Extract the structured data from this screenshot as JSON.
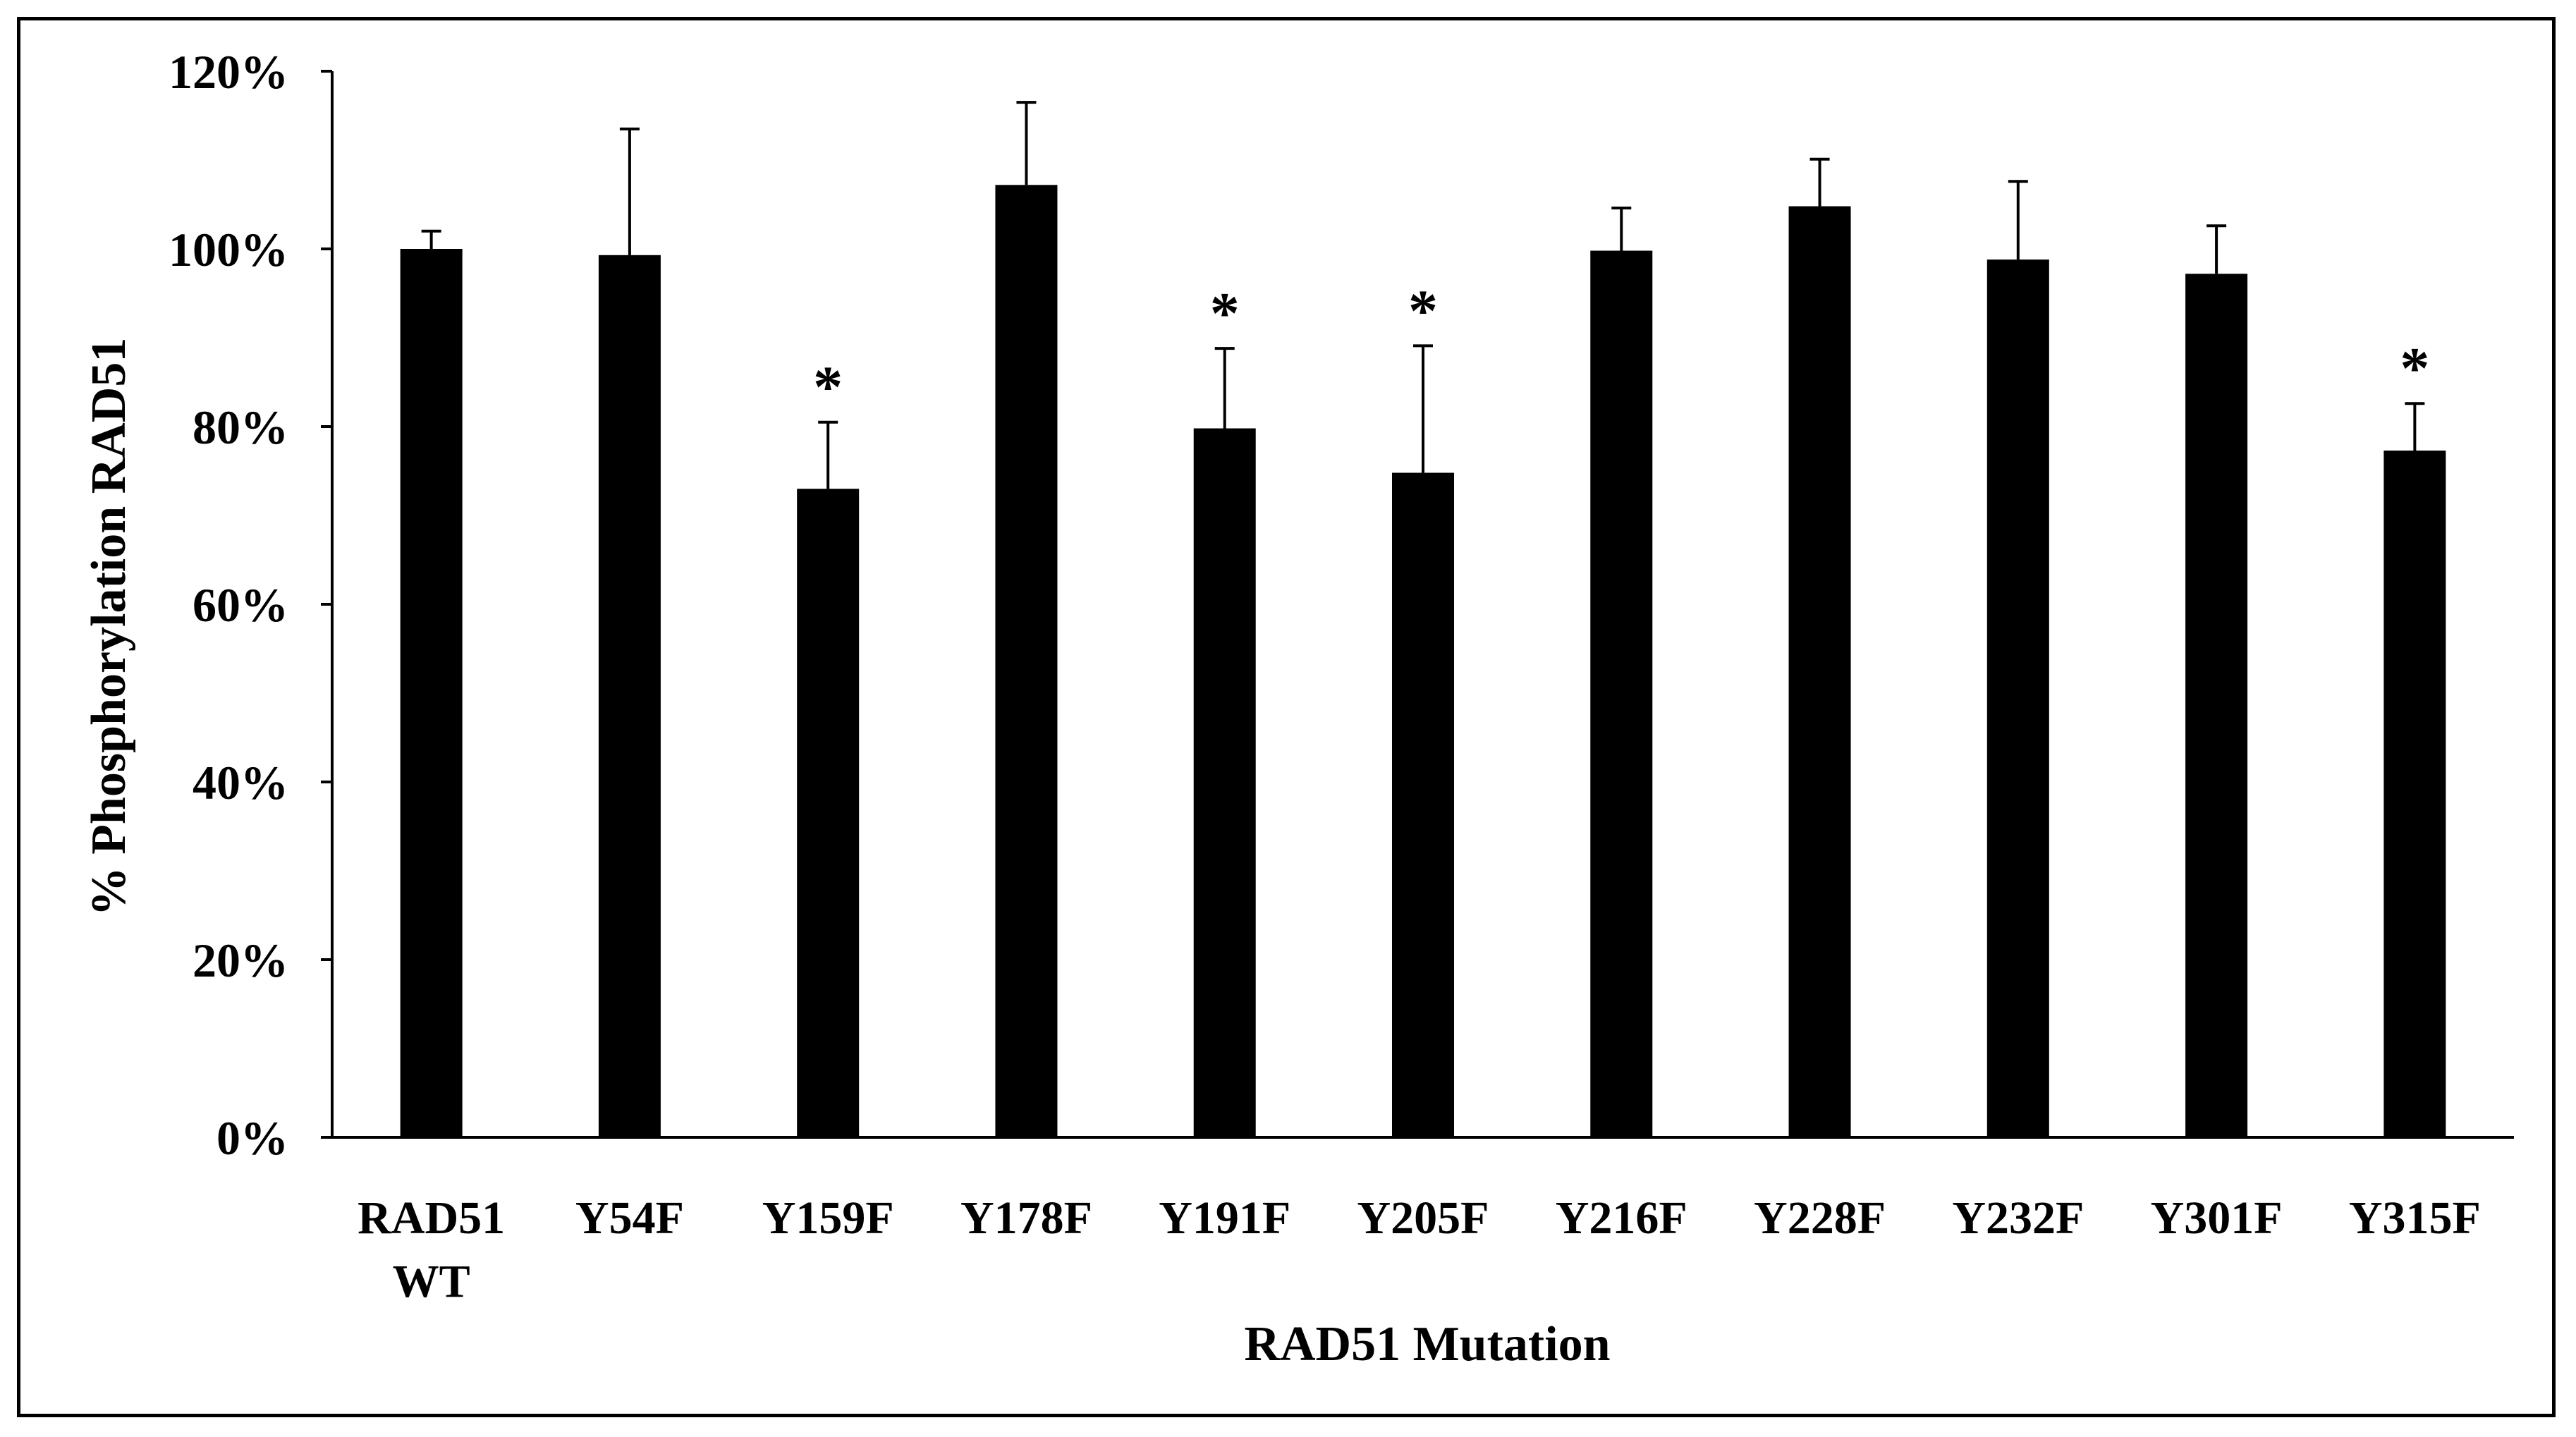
{
  "chart_data": {
    "type": "bar",
    "title": "",
    "xlabel": "RAD51 Mutation",
    "ylabel": "% Phosphorylation RAD51",
    "ylim": [
      0,
      120
    ],
    "yticks": [
      0,
      20,
      40,
      60,
      80,
      100,
      120
    ],
    "ytick_labels": [
      "0%",
      "20%",
      "40%",
      "60%",
      "80%",
      "100%",
      "120%"
    ],
    "categories": [
      [
        "RAD51",
        "WT"
      ],
      [
        "Y54F"
      ],
      [
        "Y159F"
      ],
      [
        "Y178F"
      ],
      [
        "Y191F"
      ],
      [
        "Y205F"
      ],
      [
        "Y216F"
      ],
      [
        "Y228F"
      ],
      [
        "Y232F"
      ],
      [
        "Y301F"
      ],
      [
        "Y315F"
      ]
    ],
    "values": [
      100,
      99.3,
      73,
      107.2,
      79.8,
      74.8,
      99.8,
      104.8,
      98.8,
      97.2,
      77.3
    ],
    "error_upper": [
      2,
      14.2,
      7.5,
      9.3,
      9,
      14.3,
      4.8,
      5.3,
      8.8,
      5.4,
      5.3
    ],
    "significance": [
      "",
      "",
      "*",
      "",
      "*",
      "*",
      "",
      "",
      "",
      "",
      "*"
    ],
    "bar_color": "#000000",
    "grid": false,
    "legend": "none"
  }
}
